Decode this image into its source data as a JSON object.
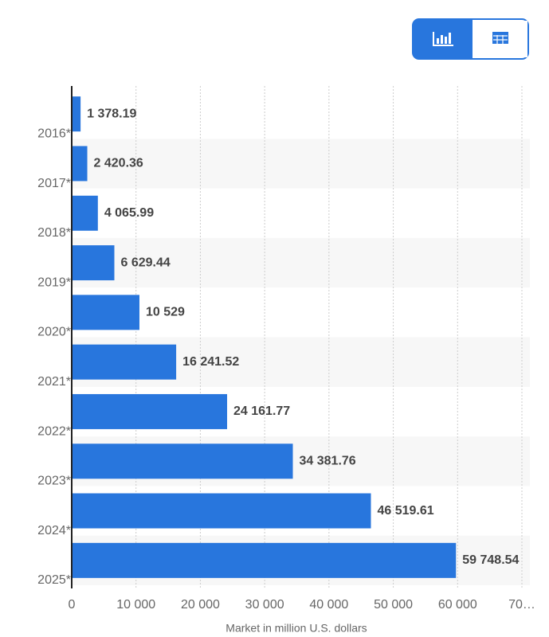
{
  "chart_data": {
    "type": "bar",
    "orientation": "horizontal",
    "x_label": "Market in million U.S. dollars",
    "categories": [
      "2016*",
      "2017*",
      "2018*",
      "2019*",
      "2020*",
      "2021*",
      "2022*",
      "2023*",
      "2024*",
      "2025*"
    ],
    "values": [
      1378.19,
      2420.36,
      4065.99,
      6629.44,
      10529,
      16241.52,
      24161.77,
      34381.76,
      46519.61,
      59748.54
    ],
    "value_labels": [
      "1 378.19",
      "2 420.36",
      "4 065.99",
      "6 629.44",
      "10 529",
      "16 241.52",
      "24 161.77",
      "34 381.76",
      "46 519.61",
      "59 748.54"
    ],
    "color": "#2876dd",
    "xlim": [
      0,
      70000
    ],
    "xticks": [
      0,
      {
        "value": 10000,
        "label": "10 000"
      },
      {
        "value": 20000,
        "label": "20 000"
      },
      {
        "value": 30000,
        "label": "30 000"
      },
      {
        "value": 40000,
        "label": "40 000"
      },
      {
        "value": 50000,
        "label": "50 000"
      },
      {
        "value": 60000,
        "label": "60 000"
      },
      {
        "value": 70000,
        "label": "70…"
      }
    ],
    "grid": true
  }
}
